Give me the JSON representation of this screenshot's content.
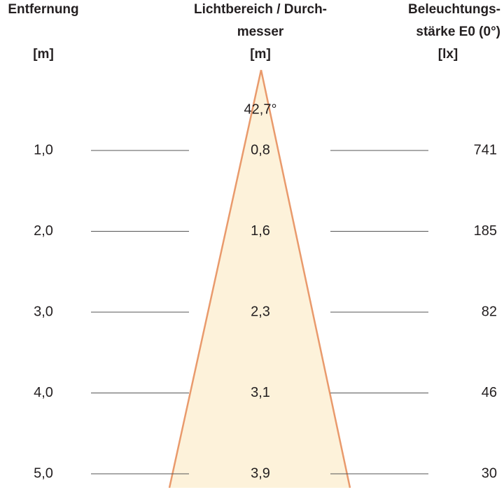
{
  "header": {
    "distance": [
      "Entfernung",
      "[m]"
    ],
    "diameter": [
      "Lichtbereich / Durch-",
      "messer",
      "[m]"
    ],
    "illuminance": [
      "Beleuchtungs-",
      "stärke E0 (0°)",
      "[lx]"
    ]
  },
  "beam_angle": "42,7°",
  "rows": [
    [
      "1,0",
      "0,8",
      "741"
    ],
    [
      "2,0",
      "1,6",
      "185"
    ],
    [
      "3,0",
      "2,3",
      "82"
    ],
    [
      "4,0",
      "3,1",
      "46"
    ],
    [
      "5,0",
      "3,9",
      "30"
    ]
  ]
}
